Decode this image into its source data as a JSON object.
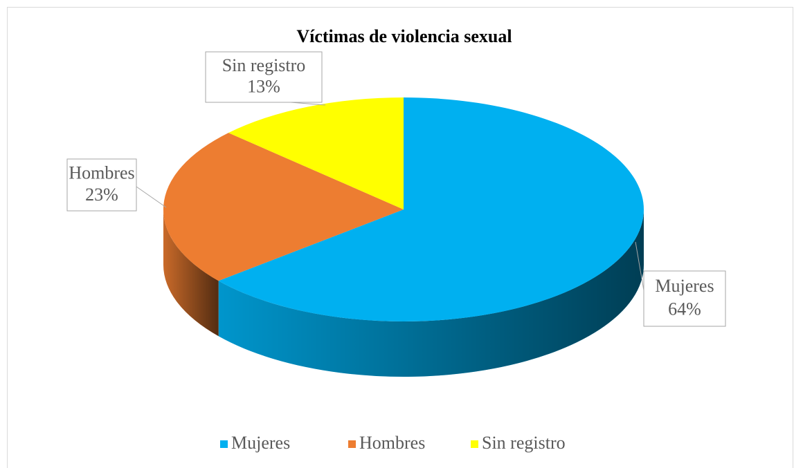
{
  "chart_data": {
    "type": "pie3d",
    "title": "Víctimas de violencia sexual",
    "categories": [
      "Mujeres",
      "Hombres",
      "Sin registro"
    ],
    "values": [
      64,
      23,
      13
    ],
    "value_labels": [
      "64%",
      "23%",
      "13%"
    ],
    "colors": [
      "#00B0F0",
      "#ED7D31",
      "#FFFF00"
    ],
    "legend": "bottom"
  }
}
